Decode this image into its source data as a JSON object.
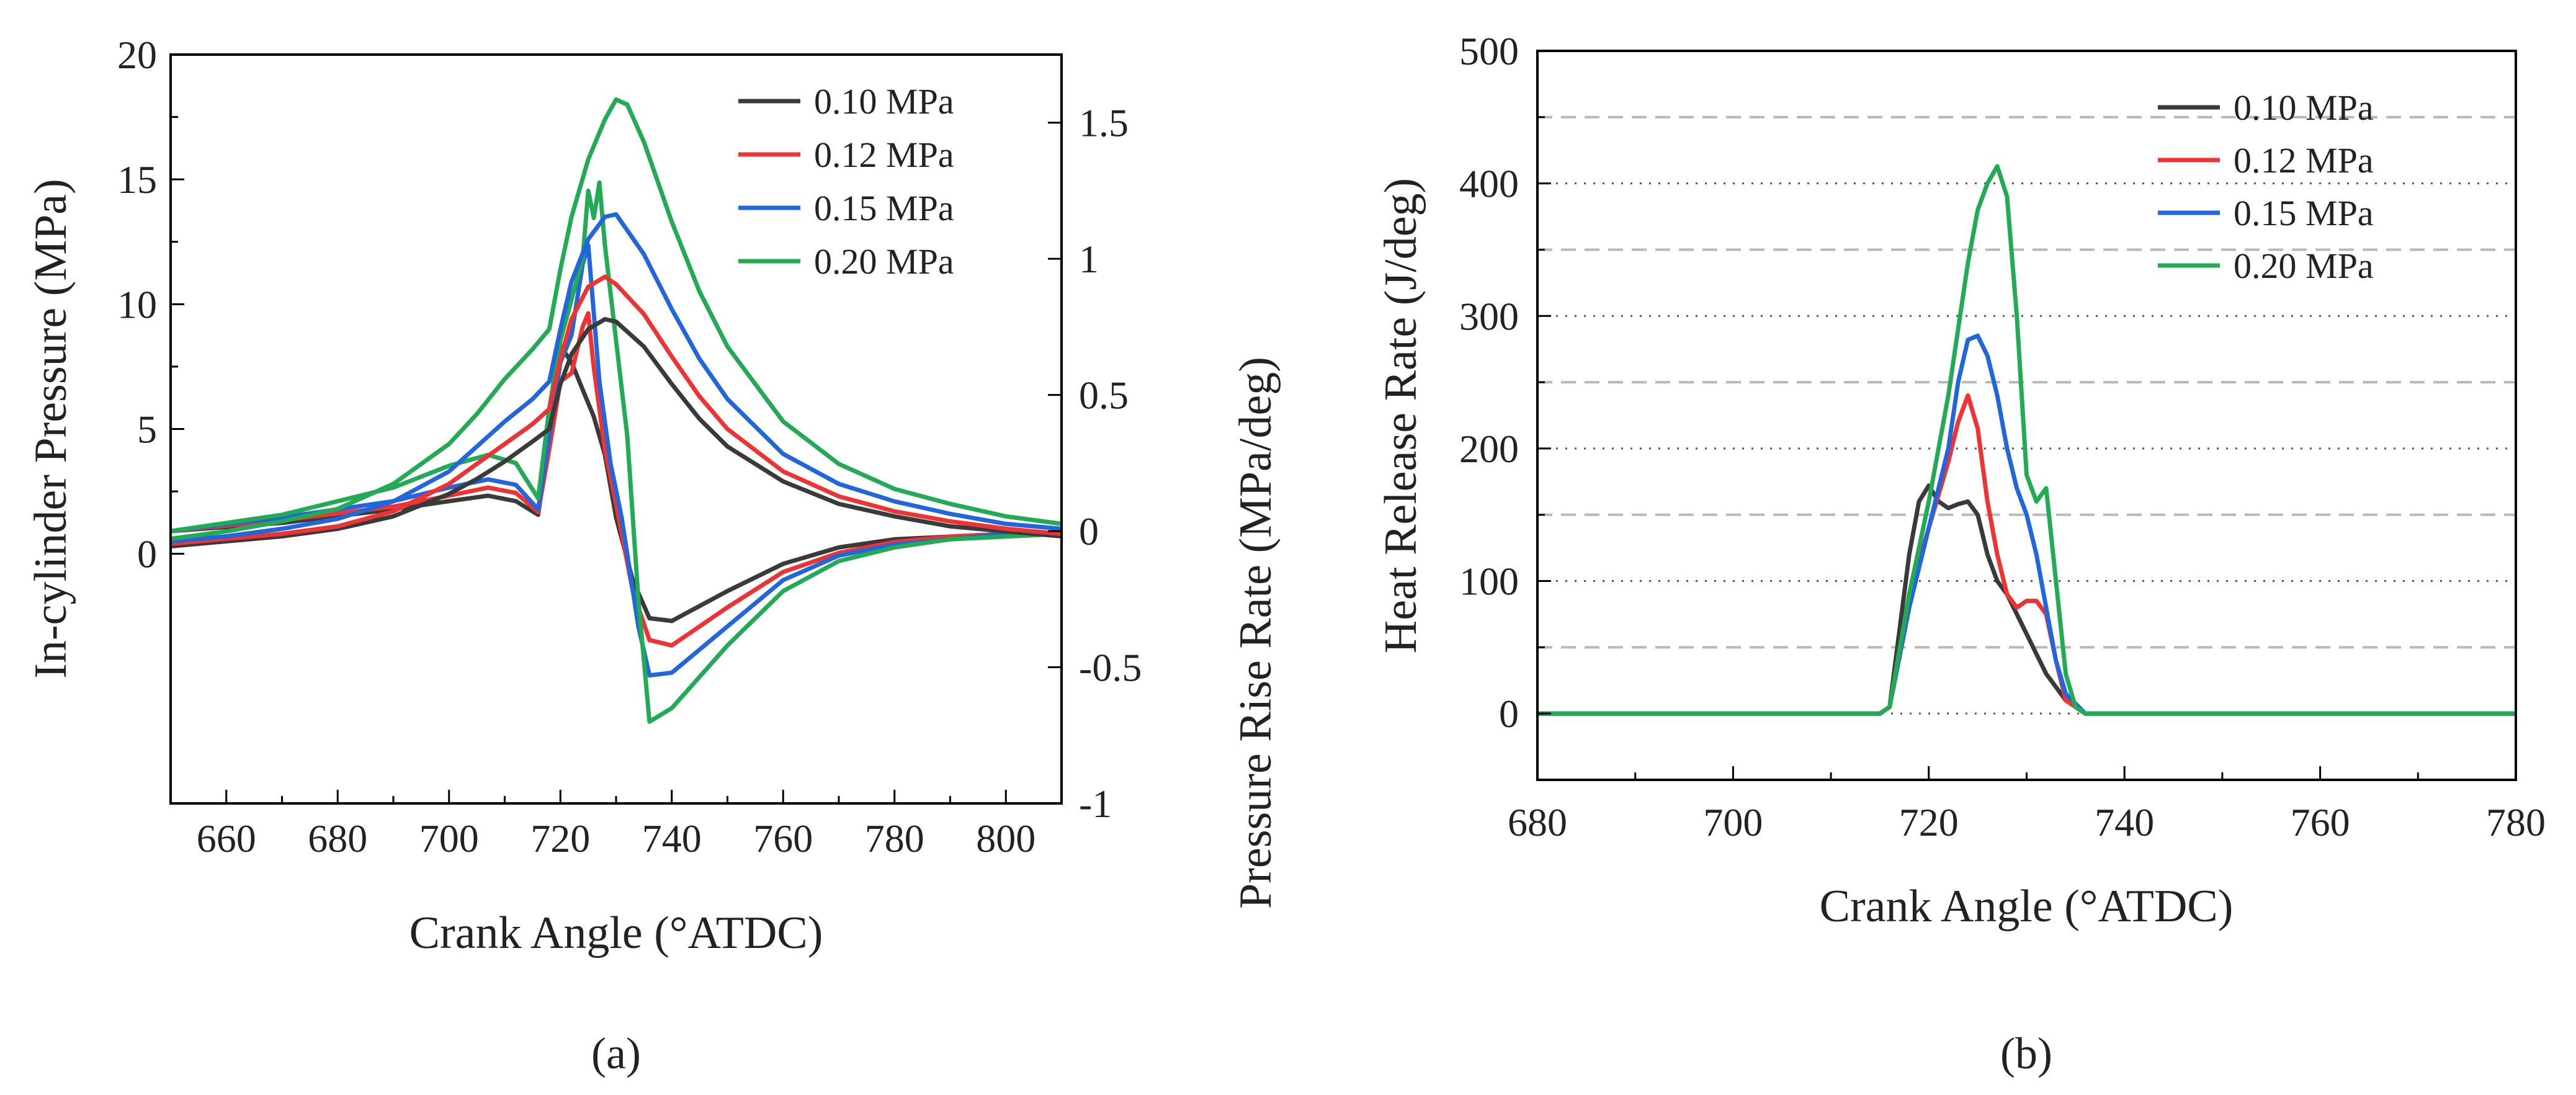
{
  "colors": {
    "s010": "#3a3a3a",
    "s012": "#ee3333",
    "s015": "#2266dd",
    "s020": "#22aa55",
    "axis": "#000000",
    "grid": "#b8b8b8"
  },
  "chart_data": [
    {
      "id": "a",
      "panel_label": "(a)",
      "type": "line",
      "xlabel": "Crank Angle (°ATDC)",
      "ylabel_left": "In-cylinder Pressure (MPa)",
      "ylabel_right": "Pressure Rise Rate (MPa/deg)",
      "xlim": [
        650,
        810
      ],
      "ylim_left": [
        -10,
        20
      ],
      "ylim_right": [
        -1,
        1.75
      ],
      "xticks": [
        660,
        680,
        700,
        720,
        740,
        760,
        780,
        800
      ],
      "yticks_left": [
        0,
        5,
        10,
        15,
        20
      ],
      "yticks_right": [
        -1,
        -0.5,
        0,
        0.5,
        1,
        1.5
      ],
      "grid": false,
      "legend": "top-right",
      "series_labels": [
        "0.10 MPa",
        "0.12 MPa",
        "0.15 MPa",
        "0.20 MPa"
      ],
      "pressure_series": [
        {
          "name": "0.10 MPa",
          "color_key": "s010",
          "x": [
            650,
            660,
            670,
            680,
            690,
            700,
            705,
            710,
            715,
            718,
            720,
            722,
            725,
            728,
            730,
            735,
            740,
            745,
            750,
            760,
            770,
            780,
            790,
            800,
            810
          ],
          "y": [
            0.3,
            0.5,
            0.7,
            1.0,
            1.5,
            2.4,
            3.0,
            3.7,
            4.5,
            5.0,
            6.8,
            8.0,
            9.0,
            9.4,
            9.3,
            8.3,
            6.8,
            5.4,
            4.3,
            2.9,
            2.0,
            1.5,
            1.1,
            0.9,
            0.7
          ]
        },
        {
          "name": "0.12 MPa",
          "color_key": "s012",
          "x": [
            650,
            660,
            670,
            680,
            690,
            700,
            705,
            710,
            715,
            718,
            720,
            722,
            725,
            728,
            730,
            735,
            740,
            745,
            750,
            760,
            770,
            780,
            790,
            800,
            810
          ],
          "y": [
            0.4,
            0.6,
            0.8,
            1.1,
            1.7,
            2.8,
            3.6,
            4.4,
            5.2,
            5.8,
            7.8,
            9.4,
            10.7,
            11.1,
            10.8,
            9.6,
            7.9,
            6.3,
            5.0,
            3.3,
            2.3,
            1.7,
            1.3,
            1.0,
            0.8
          ]
        },
        {
          "name": "0.15 MPa",
          "color_key": "s015",
          "x": [
            650,
            660,
            670,
            680,
            690,
            700,
            705,
            710,
            715,
            718,
            720,
            722,
            725,
            728,
            730,
            735,
            740,
            745,
            750,
            760,
            770,
            780,
            790,
            800,
            810
          ],
          "y": [
            0.5,
            0.7,
            1.0,
            1.4,
            2.1,
            3.3,
            4.3,
            5.3,
            6.2,
            6.9,
            9.0,
            10.9,
            12.6,
            13.5,
            13.6,
            12.0,
            9.8,
            7.8,
            6.2,
            4.0,
            2.8,
            2.1,
            1.6,
            1.2,
            1.0
          ]
        },
        {
          "name": "0.20 MPa",
          "color_key": "s020",
          "x": [
            650,
            660,
            670,
            680,
            690,
            700,
            705,
            710,
            715,
            718,
            720,
            722,
            725,
            728,
            730,
            732,
            735,
            740,
            745,
            750,
            760,
            770,
            780,
            790,
            800,
            810
          ],
          "y": [
            0.6,
            0.9,
            1.3,
            1.8,
            2.8,
            4.4,
            5.6,
            7.0,
            8.2,
            9.0,
            11.4,
            13.5,
            15.8,
            17.4,
            18.2,
            18.0,
            16.5,
            13.3,
            10.5,
            8.3,
            5.3,
            3.6,
            2.6,
            2.0,
            1.5,
            1.2
          ]
        }
      ],
      "prr_series": [
        {
          "name": "0.10 MPa",
          "color_key": "s010",
          "x": [
            650,
            670,
            690,
            700,
            707,
            712,
            716,
            718,
            720,
            722,
            724,
            726,
            728,
            730,
            733,
            736,
            740,
            750,
            760,
            770,
            780,
            790,
            800,
            810
          ],
          "y": [
            0,
            0.03,
            0.08,
            0.11,
            0.13,
            0.11,
            0.06,
            0.35,
            0.68,
            0.62,
            0.52,
            0.42,
            0.28,
            0.05,
            -0.18,
            -0.32,
            -0.33,
            -0.22,
            -0.12,
            -0.06,
            -0.03,
            -0.02,
            -0.01,
            -0.01
          ]
        },
        {
          "name": "0.12 MPa",
          "color_key": "s012",
          "x": [
            650,
            670,
            690,
            700,
            707,
            712,
            716,
            718,
            720,
            722,
            724,
            725,
            726,
            728,
            730,
            733,
            736,
            740,
            750,
            760,
            770,
            780,
            790,
            800,
            810
          ],
          "y": [
            0,
            0.04,
            0.09,
            0.13,
            0.16,
            0.14,
            0.07,
            0.3,
            0.55,
            0.58,
            0.75,
            0.8,
            0.6,
            0.3,
            0.1,
            -0.22,
            -0.4,
            -0.42,
            -0.28,
            -0.15,
            -0.08,
            -0.04,
            -0.02,
            -0.01,
            -0.01
          ]
        },
        {
          "name": "0.15 MPa",
          "color_key": "s015",
          "x": [
            650,
            670,
            690,
            700,
            707,
            712,
            716,
            718,
            720,
            722,
            723,
            724,
            725,
            726,
            727,
            729,
            731,
            734,
            736,
            740,
            750,
            760,
            770,
            780,
            790,
            800,
            810
          ],
          "y": [
            0,
            0.05,
            0.11,
            0.16,
            0.19,
            0.17,
            0.08,
            0.35,
            0.62,
            0.72,
            0.85,
            0.98,
            1.05,
            0.8,
            0.55,
            0.25,
            0.05,
            -0.35,
            -0.53,
            -0.52,
            -0.35,
            -0.18,
            -0.09,
            -0.05,
            -0.03,
            -0.01,
            -0.01
          ]
        },
        {
          "name": "0.20 MPa",
          "color_key": "s020",
          "x": [
            650,
            670,
            690,
            700,
            707,
            712,
            716,
            718,
            720,
            722,
            724,
            725,
            726,
            727,
            728,
            730,
            732,
            734,
            736,
            740,
            750,
            760,
            770,
            780,
            790,
            800,
            810
          ],
          "y": [
            0,
            0.06,
            0.16,
            0.24,
            0.28,
            0.25,
            0.12,
            0.45,
            0.7,
            0.85,
            1.0,
            1.25,
            1.15,
            1.28,
            1.05,
            0.7,
            0.35,
            -0.25,
            -0.7,
            -0.65,
            -0.42,
            -0.22,
            -0.11,
            -0.06,
            -0.03,
            -0.02,
            -0.01
          ]
        }
      ]
    },
    {
      "id": "b",
      "panel_label": "(b)",
      "type": "line",
      "xlabel": "Crank Angle (°ATDC)",
      "ylabel": "Heat Release Rate (J/deg)",
      "xlim": [
        680,
        780
      ],
      "ylim": [
        -50,
        500
      ],
      "xticks": [
        680,
        700,
        720,
        740,
        760,
        780
      ],
      "yticks": [
        0,
        100,
        200,
        300,
        400,
        500
      ],
      "grid": true,
      "legend": "top-right",
      "series": [
        {
          "name": "0.10 MPa",
          "color_key": "s010",
          "x": [
            680,
            700,
            715,
            716,
            718,
            719,
            720,
            721,
            722,
            723,
            724,
            725,
            726,
            727,
            728,
            730,
            732,
            734,
            736,
            740,
            780
          ],
          "y": [
            0,
            0,
            0,
            5,
            120,
            160,
            172,
            160,
            155,
            158,
            160,
            150,
            120,
            100,
            90,
            60,
            30,
            10,
            0,
            0,
            0
          ]
        },
        {
          "name": "0.12 MPa",
          "color_key": "s012",
          "x": [
            680,
            700,
            715,
            716,
            718,
            720,
            722,
            723,
            724,
            725,
            726,
            727,
            728,
            729,
            730,
            731,
            732,
            733,
            734,
            736,
            740,
            780
          ],
          "y": [
            0,
            0,
            0,
            5,
            90,
            140,
            190,
            220,
            240,
            215,
            160,
            120,
            90,
            80,
            85,
            85,
            75,
            40,
            10,
            0,
            0,
            0
          ]
        },
        {
          "name": "0.15 MPa",
          "color_key": "s015",
          "x": [
            680,
            700,
            715,
            716,
            718,
            720,
            722,
            723,
            724,
            725,
            726,
            727,
            728,
            729,
            730,
            731,
            732,
            733,
            734,
            736,
            740,
            780
          ],
          "y": [
            0,
            0,
            0,
            5,
            80,
            140,
            200,
            250,
            282,
            285,
            270,
            240,
            200,
            170,
            150,
            120,
            80,
            40,
            15,
            0,
            0,
            0
          ]
        },
        {
          "name": "0.20 MPa",
          "color_key": "s020",
          "x": [
            680,
            700,
            715,
            716,
            718,
            720,
            722,
            724,
            725,
            726,
            727,
            728,
            729,
            730,
            731,
            732,
            733,
            734,
            735,
            736,
            740,
            780
          ],
          "y": [
            0,
            0,
            0,
            5,
            90,
            160,
            240,
            340,
            380,
            400,
            413,
            390,
            300,
            180,
            160,
            170,
            100,
            30,
            5,
            0,
            0,
            0
          ]
        }
      ]
    }
  ]
}
